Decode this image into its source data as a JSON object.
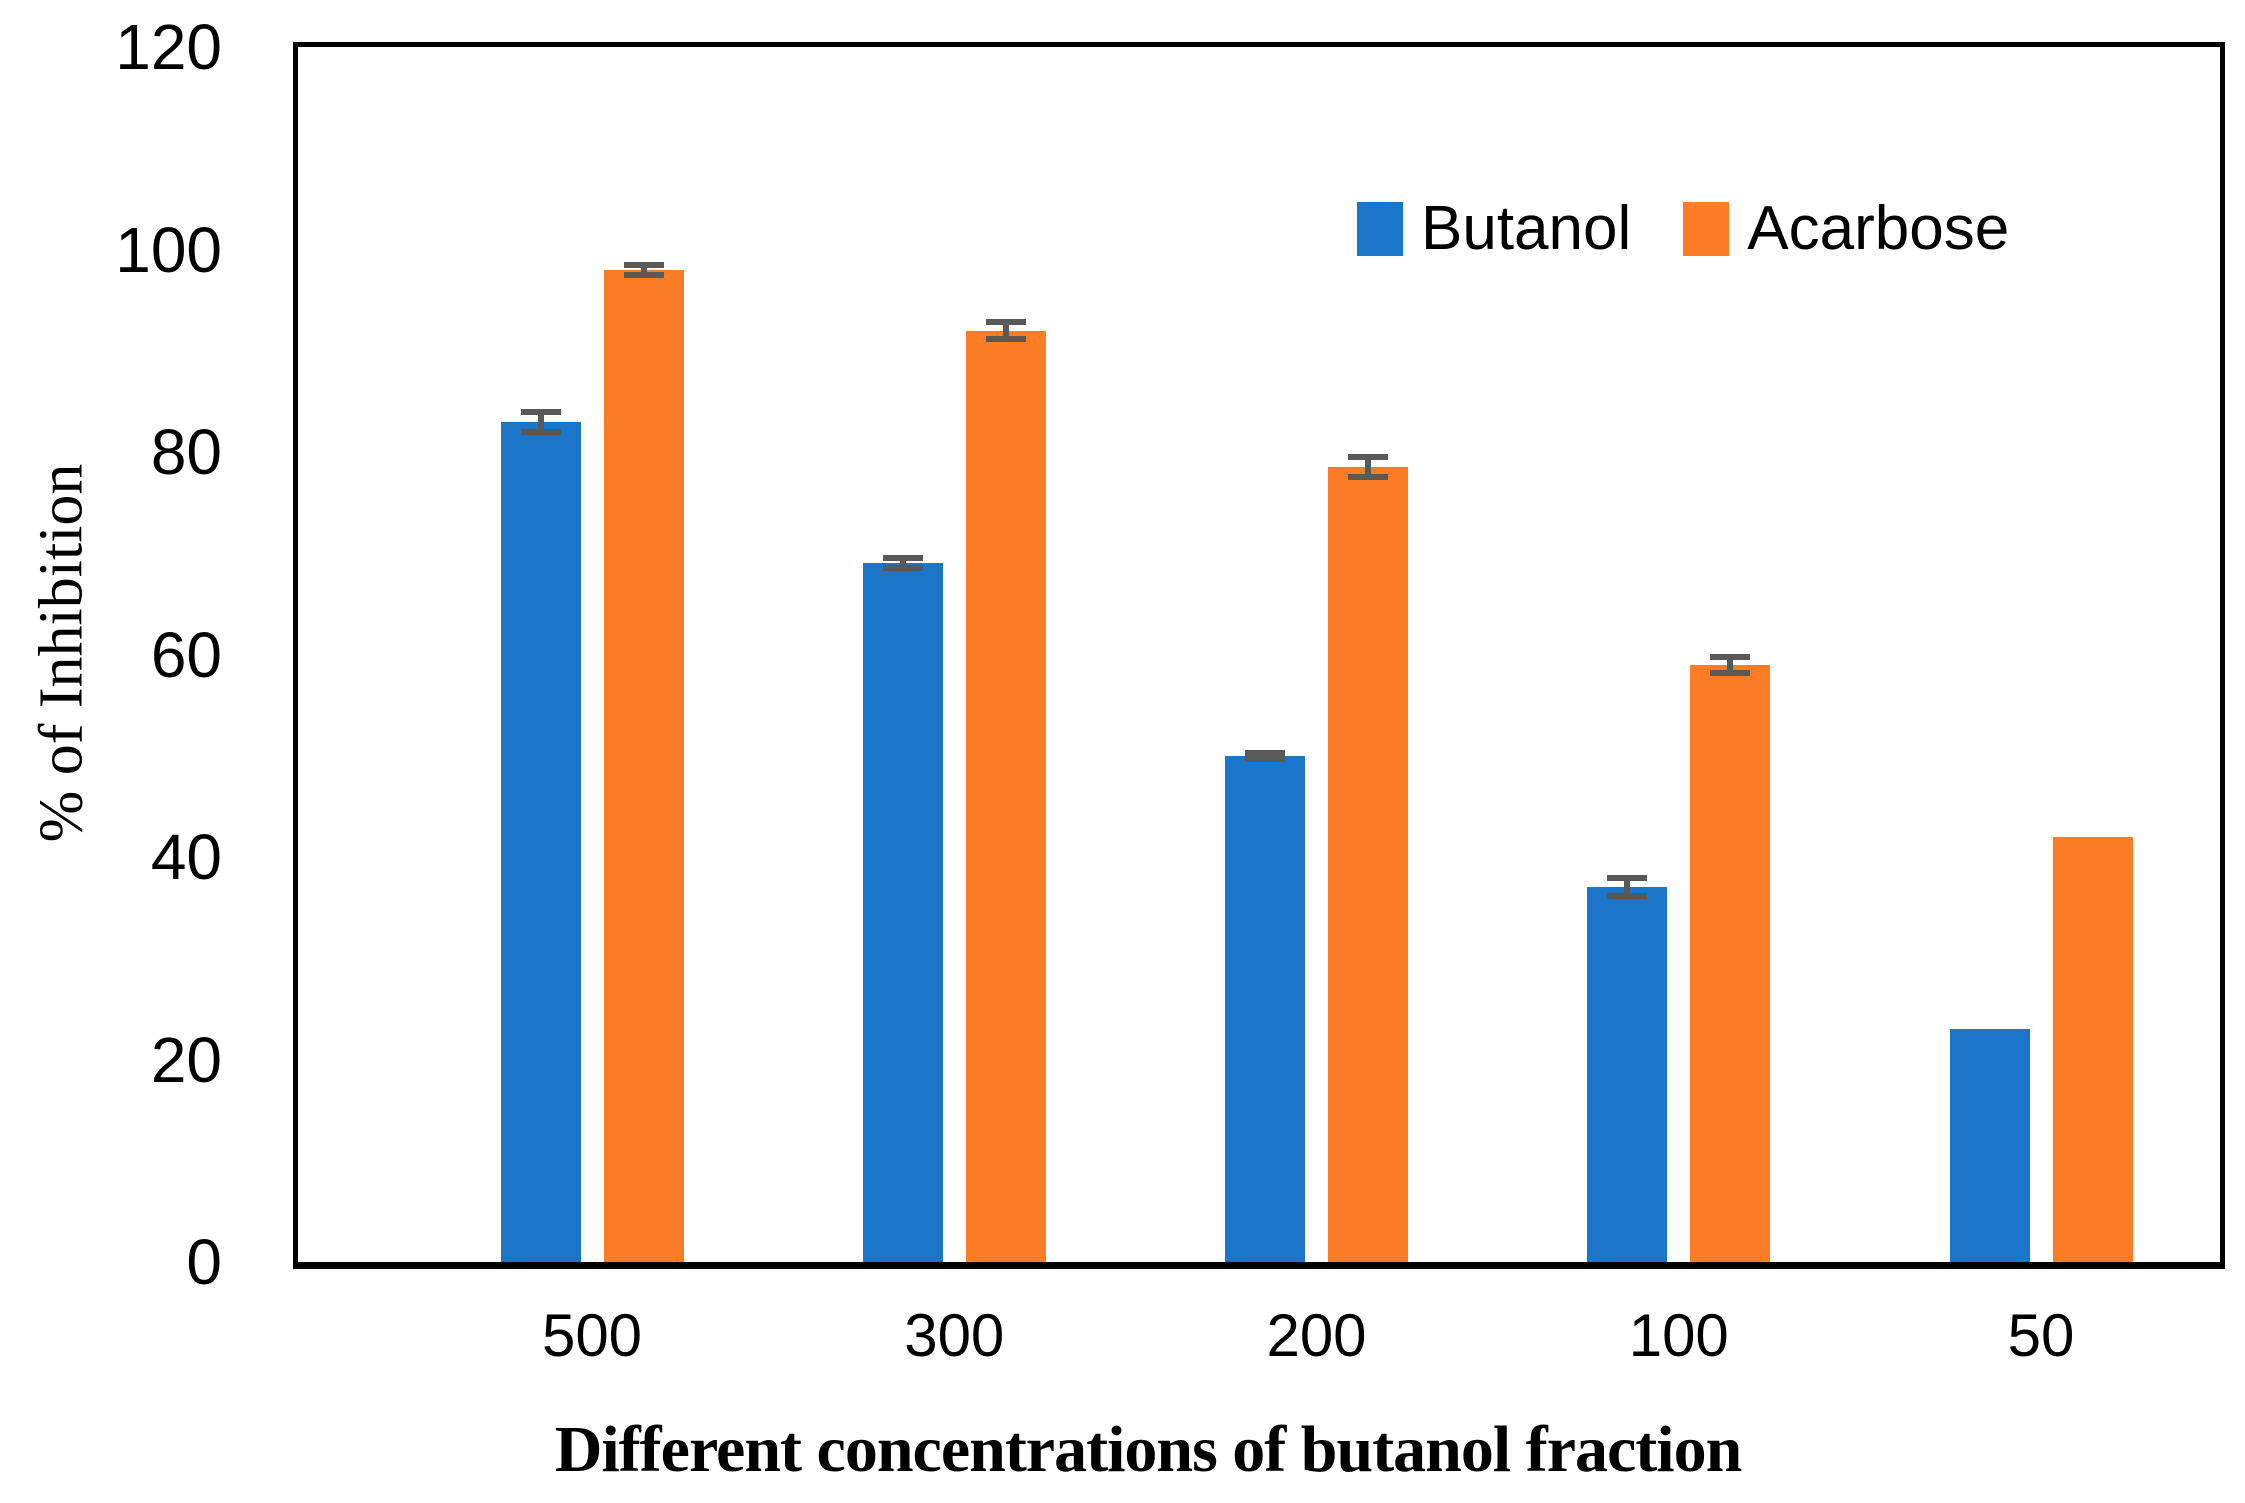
{
  "chart_data": {
    "type": "bar",
    "title": "",
    "xlabel": "Different concentrations of butanol fraction",
    "ylabel": "% of Inhibition",
    "categories": [
      "500",
      "300",
      "200",
      "100",
      "50"
    ],
    "series": [
      {
        "name": "Butanol",
        "color": "#1B75C8",
        "values": [
          83,
          69,
          50,
          37,
          23
        ],
        "errors": [
          1.0,
          0.5,
          0.3,
          0.9,
          0
        ]
      },
      {
        "name": "Acarbose",
        "color": "#FC7D26",
        "values": [
          98,
          92,
          78.5,
          59,
          42
        ],
        "errors": [
          0.5,
          0.8,
          1.0,
          0.8,
          0
        ]
      }
    ],
    "ylim": [
      0,
      120
    ],
    "yticks": [
      0,
      20,
      40,
      60,
      80,
      100,
      120
    ],
    "grid": false,
    "legend_position": "top-right-inside",
    "error_bar_color": "#595959",
    "axis_color": "#000000"
  }
}
